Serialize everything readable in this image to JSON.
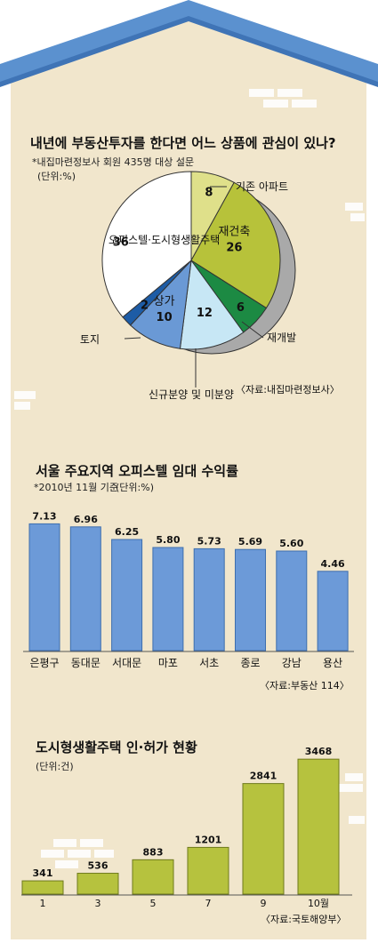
{
  "colors": {
    "roof": "#5b91cf",
    "roof_dark": "#3f74b6",
    "wall": "#f1e6cc",
    "brick": "#ffffff",
    "pie_outline": "#333333",
    "pie_shadow": "#a9a9a9",
    "bar_blue": "#6c9ad8",
    "bar_blue_edge": "#3e6fae",
    "bar_green": "#b6c23e",
    "bar_green_edge": "#6f7a1c"
  },
  "chart_data": [
    {
      "type": "pie",
      "title": "내년에 부동산투자를 한다면 어느 상품에 관심이 있나?",
      "subtitle": "*내집마련정보사 회원 435명 대상 설문",
      "unit": "(단위:%)",
      "source": "〈자료:내집마련정보사〉",
      "slices": [
        {
          "label": "기존 아파트",
          "value": 8,
          "color": "#dfe08a"
        },
        {
          "label": "재건축",
          "value": 26,
          "color": "#b7c23a"
        },
        {
          "label": "재개발",
          "value": 6,
          "color": "#1c8a43"
        },
        {
          "label": "신규분양 및 미분양",
          "value": 12,
          "color": "#c7e7f5"
        },
        {
          "label": "상가",
          "value": 10,
          "color": "#6a99d5"
        },
        {
          "label": "토지",
          "value": 2,
          "color": "#1d5ca6"
        },
        {
          "label": "오피스텔·도시형생활주택",
          "value": 36,
          "color": "#ffffff"
        }
      ]
    },
    {
      "type": "bar",
      "title": "서울 주요지역 오피스텔 임대 수익률",
      "subtitle": "*2010년 11월 기준",
      "unit": "(단위:%)",
      "source": "〈자료:부동산 114〉",
      "categories": [
        "은평구",
        "동대문",
        "서대문",
        "마포",
        "서초",
        "종로",
        "강남",
        "용산"
      ],
      "values": [
        7.13,
        6.96,
        6.25,
        5.8,
        5.73,
        5.69,
        5.6,
        4.46
      ],
      "value_labels": [
        "7.13",
        "6.96",
        "6.25",
        "5.80",
        "5.73",
        "5.69",
        "5.60",
        "4.46"
      ],
      "ylim": [
        0,
        7.4
      ]
    },
    {
      "type": "bar",
      "title": "도시형생활주택 인·허가 현황",
      "unit": "(단위:건)",
      "source": "〈자료:국토해양부〉",
      "categories": [
        "1",
        "3",
        "5",
        "7",
        "9",
        "10월"
      ],
      "values": [
        341,
        536,
        883,
        1201,
        2841,
        3468
      ],
      "value_labels": [
        "341",
        "536",
        "883",
        "1201",
        "2841",
        "3468"
      ],
      "ylim": [
        0,
        3700
      ]
    }
  ]
}
